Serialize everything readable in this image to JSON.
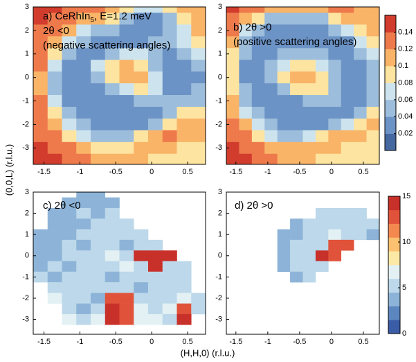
{
  "figure": {
    "xlabel": "(H,H,0) (r.l.u.)",
    "ylabel": "(0,0,L) (r.l.u.)"
  },
  "chart_data": [
    {
      "type": "heatmap",
      "annotations": [
        "a) CeRhIn",
        "5",
        ", E=1.2 meV",
        "2θ <0",
        "(negative scattering angles)"
      ],
      "x": [
        -1.55,
        -1.35,
        -1.15,
        -0.95,
        -0.75,
        -0.55,
        -0.35,
        -0.15,
        0.05,
        0.25,
        0.45,
        0.65
      ],
      "y": [
        3,
        2.5,
        2,
        1.5,
        1,
        0.5,
        0,
        -0.5,
        -1,
        -1.5,
        -2,
        -2.5,
        -3,
        -3.5
      ],
      "z": [
        [
          0.14,
          0.14,
          0.13,
          0.13,
          0.12,
          0.11,
          0.09,
          0.07,
          0.07,
          0.09,
          0.11,
          0.11
        ],
        [
          0.14,
          0.13,
          0.12,
          0.11,
          0.1,
          0.08,
          0.05,
          0.03,
          0.03,
          0.05,
          0.09,
          0.11
        ],
        [
          0.13,
          0.12,
          0.1,
          0.07,
          0.05,
          0.04,
          0.03,
          0.03,
          0.03,
          0.04,
          0.07,
          0.1
        ],
        [
          0.13,
          0.1,
          0.06,
          0.04,
          0.03,
          0.03,
          0.03,
          0.03,
          0.04,
          0.05,
          0.06,
          0.09
        ],
        [
          0.12,
          0.08,
          0.04,
          0.03,
          0.03,
          0.05,
          0.07,
          0.06,
          0.04,
          0.03,
          0.04,
          0.06
        ],
        [
          0.12,
          0.06,
          0.03,
          0.03,
          0.06,
          0.09,
          0.1,
          0.09,
          0.05,
          0.03,
          0.03,
          0.04
        ],
        [
          0.11,
          0.05,
          0.03,
          0.03,
          0.05,
          0.09,
          0.11,
          0.11,
          0.07,
          0.03,
          0.03,
          0.03
        ],
        [
          0.11,
          0.05,
          0.03,
          0.03,
          0.03,
          0.05,
          0.07,
          0.08,
          0.06,
          0.03,
          0.03,
          0.04
        ],
        [
          0.12,
          0.06,
          0.03,
          0.03,
          0.03,
          0.03,
          0.03,
          0.04,
          0.05,
          0.05,
          0.05,
          0.05
        ],
        [
          0.12,
          0.08,
          0.04,
          0.03,
          0.03,
          0.03,
          0.03,
          0.03,
          0.03,
          0.05,
          0.08,
          0.09
        ],
        [
          0.13,
          0.1,
          0.06,
          0.04,
          0.03,
          0.03,
          0.03,
          0.03,
          0.05,
          0.09,
          0.11,
          0.11
        ],
        [
          0.13,
          0.12,
          0.09,
          0.06,
          0.04,
          0.04,
          0.05,
          0.08,
          0.11,
          0.12,
          0.11,
          0.1
        ],
        [
          0.14,
          0.13,
          0.12,
          0.1,
          0.08,
          0.08,
          0.09,
          0.1,
          0.11,
          0.1,
          0.09,
          0.09
        ],
        [
          0.14,
          0.14,
          0.13,
          0.12,
          0.11,
          0.11,
          0.11,
          0.1,
          0.09,
          0.09,
          0.09,
          0.09
        ]
      ],
      "xlim": [
        -1.65,
        0.75
      ],
      "ylim": [
        -3.7,
        3
      ],
      "xticks": [
        -1.5,
        -1,
        -0.5,
        0,
        0.5
      ],
      "yticks": [
        -3,
        -2,
        -1,
        0,
        1,
        2,
        3
      ],
      "clim": [
        0,
        0.16
      ],
      "colors": [
        "#44689f",
        "#6c93c6",
        "#9cbddb",
        "#cde3ee",
        "#fde4a0",
        "#f9b468",
        "#ee7a4c",
        "#d23c2d"
      ]
    },
    {
      "type": "heatmap",
      "annotations": [
        "b) 2θ >0",
        "(positive scattering angles)"
      ],
      "x": [
        -1.55,
        -1.35,
        -1.15,
        -0.95,
        -0.75,
        -0.55,
        -0.35,
        -0.15,
        0.05,
        0.25,
        0.45,
        0.65
      ],
      "y": [
        3,
        2.5,
        2,
        1.5,
        1,
        0.5,
        0,
        -0.5,
        -1,
        -1.5,
        -2,
        -2.5,
        -3,
        -3.5
      ],
      "z": [
        [
          0.14,
          0.13,
          0.12,
          0.11,
          0.1,
          0.1,
          0.1,
          0.11,
          0.12,
          0.12,
          0.11,
          0.11
        ],
        [
          0.13,
          0.11,
          0.08,
          0.05,
          0.04,
          0.04,
          0.04,
          0.05,
          0.08,
          0.1,
          0.11,
          0.11
        ],
        [
          0.12,
          0.07,
          0.04,
          0.03,
          0.03,
          0.03,
          0.03,
          0.03,
          0.04,
          0.06,
          0.09,
          0.1
        ],
        [
          0.1,
          0.05,
          0.03,
          0.03,
          0.03,
          0.03,
          0.03,
          0.03,
          0.03,
          0.03,
          0.06,
          0.08
        ],
        [
          0.09,
          0.04,
          0.03,
          0.03,
          0.04,
          0.05,
          0.05,
          0.04,
          0.03,
          0.03,
          0.04,
          0.07
        ],
        [
          0.08,
          0.03,
          0.03,
          0.04,
          0.07,
          0.09,
          0.09,
          0.07,
          0.04,
          0.03,
          0.03,
          0.05
        ],
        [
          0.08,
          0.03,
          0.03,
          0.04,
          0.08,
          0.11,
          0.11,
          0.09,
          0.05,
          0.03,
          0.03,
          0.04
        ],
        [
          0.09,
          0.04,
          0.03,
          0.03,
          0.05,
          0.08,
          0.09,
          0.08,
          0.05,
          0.03,
          0.03,
          0.04
        ],
        [
          0.1,
          0.05,
          0.03,
          0.03,
          0.03,
          0.03,
          0.04,
          0.05,
          0.04,
          0.03,
          0.03,
          0.05
        ],
        [
          0.11,
          0.07,
          0.04,
          0.03,
          0.03,
          0.03,
          0.03,
          0.03,
          0.03,
          0.03,
          0.05,
          0.08
        ],
        [
          0.12,
          0.1,
          0.06,
          0.04,
          0.03,
          0.03,
          0.03,
          0.03,
          0.04,
          0.07,
          0.09,
          0.1
        ],
        [
          0.13,
          0.12,
          0.09,
          0.07,
          0.05,
          0.05,
          0.06,
          0.08,
          0.1,
          0.11,
          0.1,
          0.09
        ],
        [
          0.14,
          0.13,
          0.12,
          0.11,
          0.1,
          0.1,
          0.1,
          0.1,
          0.1,
          0.09,
          0.08,
          0.08
        ],
        [
          0.14,
          0.14,
          0.13,
          0.12,
          0.11,
          0.11,
          0.1,
          0.09,
          0.08,
          0.08,
          0.08,
          0.08
        ]
      ],
      "xlim": [
        -1.65,
        0.75
      ],
      "ylim": [
        -3.7,
        3
      ],
      "xticks": [
        -1.5,
        -1,
        -0.5,
        0,
        0.5
      ],
      "yticks": [
        -3,
        -2,
        -1,
        0,
        1,
        2,
        3
      ],
      "clim": [
        0,
        0.16
      ],
      "colors": [
        "#44689f",
        "#6c93c6",
        "#9cbddb",
        "#cde3ee",
        "#fde4a0",
        "#f9b468",
        "#ee7a4c",
        "#d23c2d"
      ],
      "cticks": [
        0.02,
        0.04,
        0.06,
        0.08,
        0.1,
        0.12,
        0.14
      ]
    },
    {
      "type": "heatmap",
      "annotations": [
        "c) 2θ <0"
      ],
      "x": [
        -1.55,
        -1.35,
        -1.15,
        -0.95,
        -0.75,
        -0.55,
        -0.35,
        -0.15,
        0.05,
        0.25,
        0.45,
        0.65
      ],
      "y": [
        3,
        2.5,
        2,
        1.5,
        1,
        0.5,
        0,
        -0.5,
        -1,
        -1.5,
        -2,
        -2.5,
        -3,
        -3.5
      ],
      "z": [
        [
          null,
          null,
          null,
          4,
          4,
          null,
          null,
          null,
          null,
          null,
          null,
          null
        ],
        [
          null,
          null,
          4,
          4,
          4,
          4,
          null,
          null,
          null,
          null,
          null,
          null
        ],
        [
          null,
          4,
          4,
          5,
          4,
          5,
          null,
          null,
          null,
          null,
          null,
          null
        ],
        [
          null,
          4,
          4,
          4,
          5,
          5,
          5,
          null,
          null,
          null,
          null,
          null
        ],
        [
          4,
          4,
          4,
          5,
          5,
          5,
          5,
          5,
          null,
          null,
          null,
          null
        ],
        [
          4,
          4,
          5,
          4,
          5,
          5,
          4,
          5,
          5,
          null,
          null,
          null
        ],
        [
          4,
          4,
          5,
          5,
          5,
          6,
          5,
          14,
          14,
          14,
          null,
          null
        ],
        [
          4,
          5,
          4,
          5,
          5,
          5,
          6,
          5,
          14,
          5,
          5,
          null
        ],
        [
          5,
          4,
          5,
          5,
          5,
          4,
          5,
          5,
          5,
          5,
          5,
          null
        ],
        [
          null,
          5,
          5,
          5,
          5,
          5,
          5,
          4,
          5,
          5,
          5,
          null
        ],
        [
          null,
          6,
          5,
          5,
          4,
          13,
          13,
          5,
          5,
          5,
          6,
          5
        ],
        [
          null,
          null,
          5,
          4,
          5,
          14,
          13,
          6,
          5,
          6,
          13,
          5
        ],
        [
          null,
          null,
          6,
          5,
          6,
          14,
          12,
          6,
          6,
          5,
          14,
          null
        ],
        [
          null,
          null,
          null,
          null,
          null,
          null,
          null,
          null,
          null,
          null,
          null,
          null
        ]
      ],
      "xlim": [
        -1.65,
        0.75
      ],
      "ylim": [
        -3.7,
        3
      ],
      "xticks": [
        -1.5,
        -1,
        -0.5,
        0,
        0.5
      ],
      "yticks": [
        -3,
        -2,
        -1,
        0,
        1,
        2,
        3
      ],
      "clim": [
        0,
        15
      ],
      "colors": [
        "#3b5da7",
        "#5b86c0",
        "#8db4d8",
        "#bcd8ea",
        "#e3f1f4",
        "#fde9a6",
        "#fbc070",
        "#f3894f",
        "#e0533a",
        "#c8302a"
      ]
    },
    {
      "type": "heatmap",
      "annotations": [
        "d) 2θ >0"
      ],
      "x": [
        -1.55,
        -1.35,
        -1.15,
        -0.95,
        -0.75,
        -0.55,
        -0.35,
        -0.15,
        0.05,
        0.25,
        0.45,
        0.65
      ],
      "y": [
        3,
        2.5,
        2,
        1.5,
        1,
        0.5,
        0,
        -0.5,
        -1,
        -1.5,
        -2,
        -2.5,
        -3,
        -3.5
      ],
      "z": [
        [
          null,
          null,
          null,
          null,
          null,
          null,
          null,
          null,
          null,
          null,
          null,
          null
        ],
        [
          null,
          null,
          null,
          null,
          null,
          null,
          null,
          null,
          null,
          null,
          null,
          null
        ],
        [
          null,
          null,
          null,
          null,
          null,
          null,
          null,
          5,
          5,
          5,
          5,
          null
        ],
        [
          null,
          null,
          null,
          null,
          null,
          4,
          5,
          5,
          5,
          5,
          5,
          5
        ],
        [
          null,
          null,
          null,
          null,
          4,
          4,
          5,
          5,
          6,
          5,
          5,
          4
        ],
        [
          null,
          null,
          null,
          null,
          4,
          5,
          5,
          5,
          13,
          13,
          null,
          null
        ],
        [
          null,
          null,
          null,
          null,
          4,
          5,
          5,
          14,
          13,
          null,
          null,
          null
        ],
        [
          null,
          null,
          null,
          null,
          4,
          5,
          5,
          5,
          null,
          null,
          null,
          null
        ],
        [
          null,
          null,
          null,
          null,
          null,
          4,
          5,
          null,
          null,
          null,
          null,
          null
        ],
        [
          null,
          null,
          null,
          null,
          null,
          null,
          null,
          null,
          null,
          null,
          null,
          null
        ],
        [
          null,
          null,
          null,
          null,
          null,
          null,
          null,
          null,
          null,
          null,
          null,
          null
        ],
        [
          null,
          null,
          null,
          null,
          null,
          null,
          null,
          null,
          null,
          null,
          null,
          null
        ],
        [
          null,
          null,
          null,
          null,
          null,
          null,
          null,
          null,
          null,
          null,
          null,
          null
        ],
        [
          null,
          null,
          null,
          null,
          null,
          null,
          null,
          null,
          null,
          null,
          null,
          null
        ]
      ],
      "xlim": [
        -1.65,
        0.75
      ],
      "ylim": [
        -3.7,
        3
      ],
      "xticks": [
        -1.5,
        -1,
        -0.5,
        0,
        0.5
      ],
      "yticks": [
        -3,
        -2,
        -1,
        0,
        1,
        2,
        3
      ],
      "clim": [
        0,
        15
      ],
      "colors": [
        "#3b5da7",
        "#5b86c0",
        "#8db4d8",
        "#bcd8ea",
        "#e3f1f4",
        "#fde9a6",
        "#fbc070",
        "#f3894f",
        "#e0533a",
        "#c8302a"
      ],
      "cticks": [
        0,
        5,
        10,
        15
      ]
    }
  ]
}
